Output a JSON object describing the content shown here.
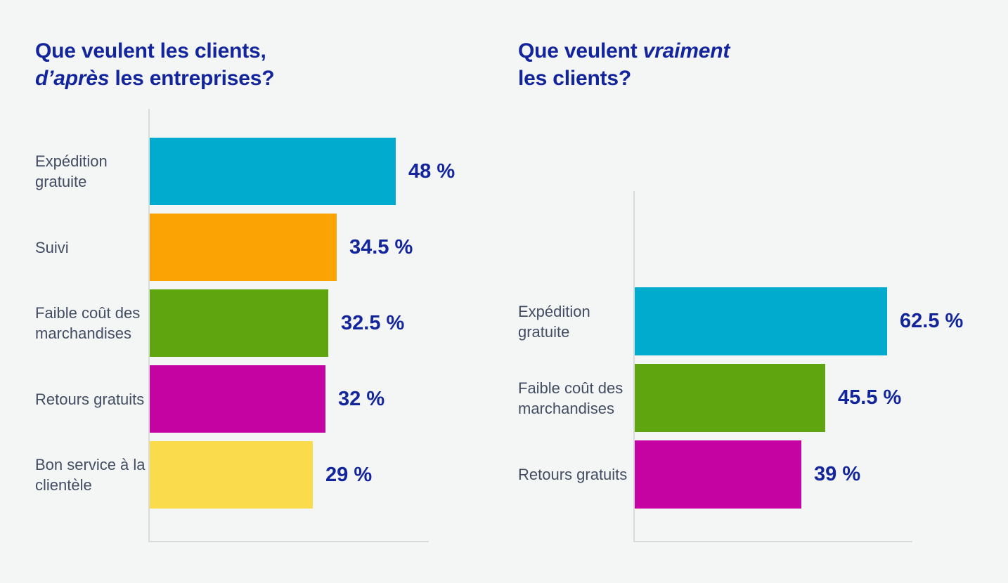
{
  "page": {
    "background_color": "#f4f5f5",
    "title_color": "#13259c",
    "value_color": "#13259c",
    "category_label_color": "#424d62",
    "axis_color": "#d9dbdb"
  },
  "chart_data": [
    {
      "id": "what-companies-think-clients-want",
      "type": "bar",
      "orientation": "horizontal",
      "title_segments": [
        {
          "text": "Que veulent les clients,",
          "italic": false,
          "break_after": true
        },
        {
          "text": "d’après",
          "italic": true,
          "break_after": false
        },
        {
          "text": " les entreprises?",
          "italic": false,
          "break_after": false
        }
      ],
      "categories": [
        "Expédition gratuite",
        "Suivi",
        "Faible coût des marchandises",
        "Retours gratuits",
        "Bon service à la clientèle"
      ],
      "values": [
        48,
        34.5,
        32.5,
        32,
        29
      ],
      "value_labels": [
        "48 %",
        "34.5 %",
        "32.5 %",
        "32 %",
        "29 %"
      ],
      "bar_colors": [
        "#00abce",
        "#fba304",
        "#5ea50f",
        "#c503a3",
        "#f9db4c"
      ],
      "xlim": [
        0,
        55
      ],
      "grid": false,
      "legend": "none",
      "value_label_position": "right-of-bar"
    },
    {
      "id": "what-clients-really-want",
      "type": "bar",
      "orientation": "horizontal",
      "title_segments": [
        {
          "text": "Que veulent ",
          "italic": false,
          "break_after": false
        },
        {
          "text": "vraiment",
          "italic": true,
          "break_after": true
        },
        {
          "text": "les clients?",
          "italic": false,
          "break_after": false
        }
      ],
      "categories": [
        "Expédition gratuite",
        "Faible coût des marchandises",
        "Retours gratuits"
      ],
      "values": [
        62.5,
        45.5,
        39
      ],
      "value_labels": [
        "62.5 %",
        "45.5 %",
        "39 %"
      ],
      "bar_colors": [
        "#00abce",
        "#5ea50f",
        "#c503a3"
      ],
      "xlim": [
        0,
        70
      ],
      "grid": false,
      "legend": "none",
      "value_label_position": "right-of-bar"
    }
  ]
}
